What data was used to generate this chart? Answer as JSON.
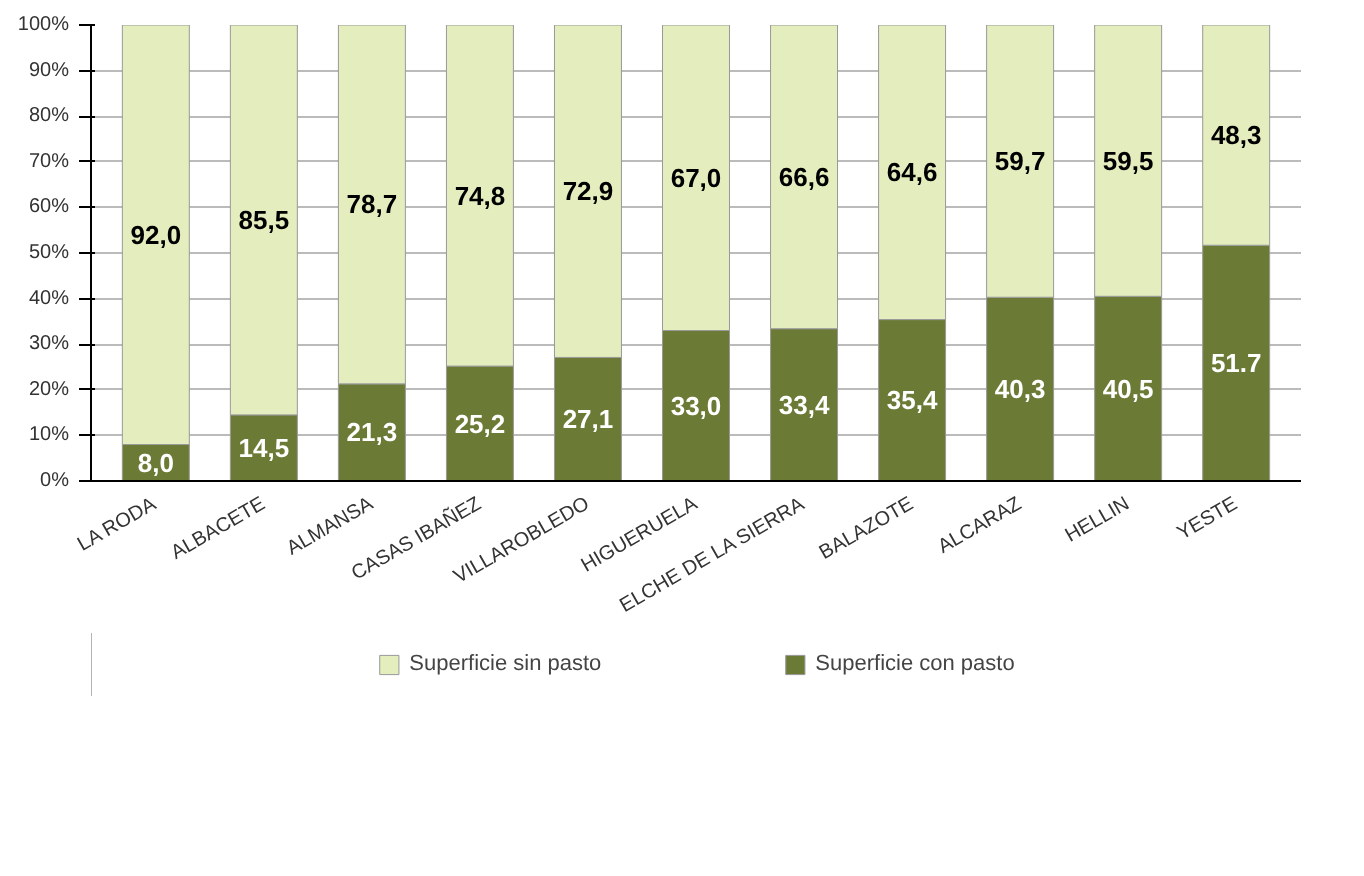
{
  "chart_data": {
    "type": "bar",
    "stacked": true,
    "categories": [
      "LA RODA",
      "ALBACETE",
      "ALMANSA",
      "CASAS IBAÑEZ",
      "VILLAROBLEDO",
      "HIGUERUELA",
      "ELCHE DE LA SIERRA",
      "BALAZOTE",
      "ALCARAZ",
      "HELLIN",
      "YESTE"
    ],
    "series": [
      {
        "name": "Superficie con pasto",
        "color": "#6b7b36",
        "values": [
          8.0,
          14.5,
          21.3,
          25.2,
          27.1,
          33.0,
          33.4,
          35.4,
          40.3,
          40.5,
          51.7
        ],
        "value_labels": [
          "8,0",
          "14,5",
          "21,3",
          "25,2",
          "27,1",
          "33,0",
          "33,4",
          "35,4",
          "40,3",
          "40,5",
          "51.7"
        ]
      },
      {
        "name": "Superficie sin pasto",
        "color": "#e3edbd",
        "values": [
          92.0,
          85.5,
          78.7,
          74.8,
          72.9,
          67.0,
          66.6,
          64.6,
          59.7,
          59.5,
          48.3
        ],
        "value_labels": [
          "92,0",
          "85,5",
          "78,7",
          "74,8",
          "72,9",
          "67,0",
          "66,6",
          "64,6",
          "59,7",
          "59,5",
          "48,3"
        ]
      }
    ],
    "ylim": [
      0,
      100
    ],
    "yticks": [
      {
        "value": 0,
        "label": "0%"
      },
      {
        "value": 10,
        "label": "10%"
      },
      {
        "value": 20,
        "label": "20%"
      },
      {
        "value": 30,
        "label": "30%"
      },
      {
        "value": 40,
        "label": "40%"
      },
      {
        "value": 50,
        "label": "50%"
      },
      {
        "value": 60,
        "label": "60%"
      },
      {
        "value": 70,
        "label": "70%"
      },
      {
        "value": 80,
        "label": "80%"
      },
      {
        "value": 90,
        "label": "90%"
      },
      {
        "value": 100,
        "label": "100%"
      }
    ],
    "grid": "y",
    "legend": "bottom"
  }
}
